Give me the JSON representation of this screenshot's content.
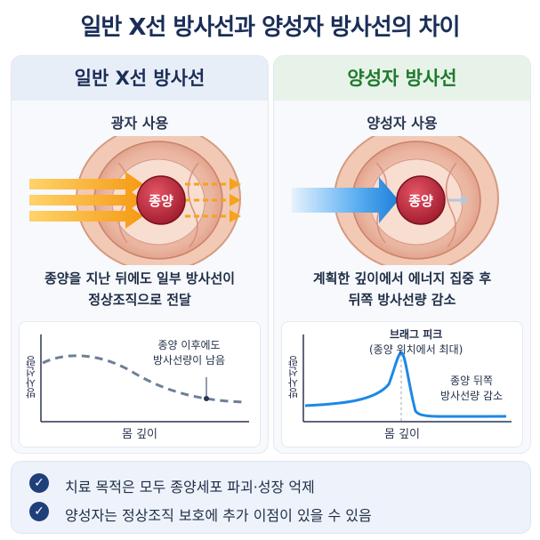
{
  "title": "일반 X선 방사선과 양성자 방사선의 차이",
  "left": {
    "header": "일반 X선 방사선",
    "subtitle": "광자 사용",
    "tumor_label": "종양",
    "description_line1": "종양을 지난 뒤에도 일부 방사선이",
    "description_line2": "정상조직으로 전달",
    "graph": {
      "ylabel": "방사선량",
      "xlabel": "몸 깊이",
      "note_line1": "종양 이후에도",
      "note_line2": "방사선량이 남음"
    }
  },
  "right": {
    "header": "양성자 방사선",
    "subtitle": "양성자 사용",
    "tumor_label": "종양",
    "description_line1": "계획한 깊이에서 에너지 집중 후",
    "description_line2": "뒤쪽 방사선량 감소",
    "graph": {
      "ylabel": "방사선량",
      "xlabel": "몸 깊이",
      "peak_line1": "브래그 피크",
      "peak_line2": "(종양 위치에서 최대)",
      "note_line1": "종양 뒤쪽",
      "note_line2": "방사선량 감소"
    }
  },
  "summary": {
    "item1": "치료 목적은 모두 종양세포 파괴·성장 억제",
    "item2": "양성자는 정상조직 보호에 추가 이점이 있을 수 있음"
  },
  "colors": {
    "title": "#1a2e57",
    "proton_header": "#1f7a2e",
    "xray_beam": "#f5a31a",
    "proton_beam": "#1e88e5",
    "tumor": "#c0283a"
  },
  "icons": {
    "check": "check-circle-icon"
  }
}
